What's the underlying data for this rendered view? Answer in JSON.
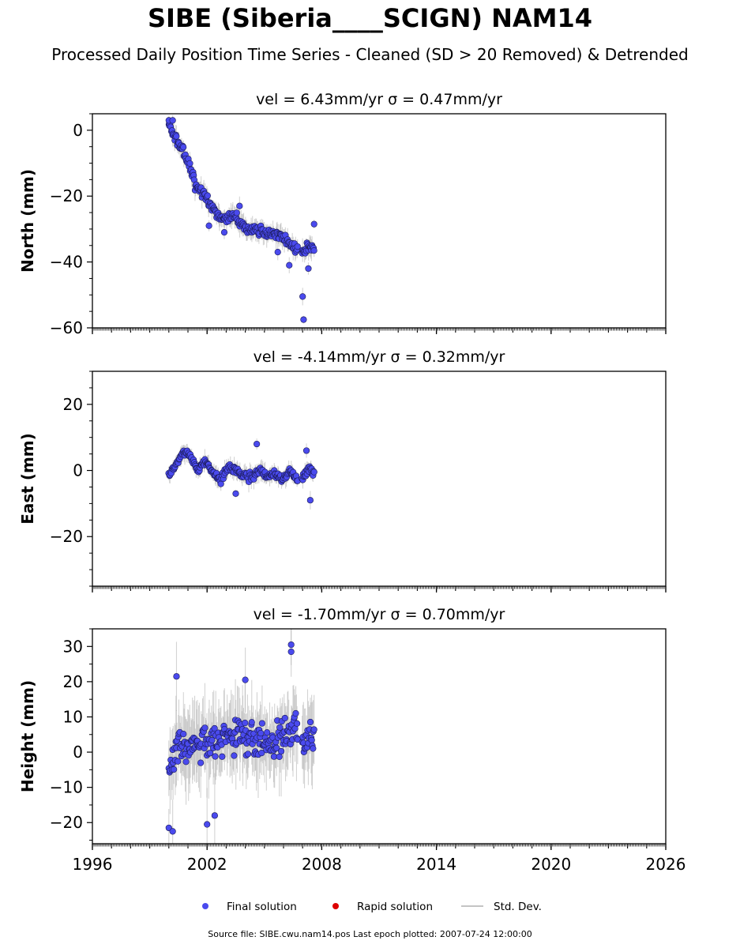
{
  "title": "SIBE (Siberia____SCIGN) NAM14",
  "subtitle": "Processed Daily Position Time Series - Cleaned (SD > 20 Removed) & Detrended",
  "footer": "Source file: SIBE.cwu.nam14.pos  Last epoch plotted: 2007-07-24 12:00:00",
  "colors": {
    "final": "#4a4aee",
    "rapid": "#dd0000",
    "stddev": "#b0b0b0"
  },
  "legend": [
    {
      "key": "final",
      "label": "Final solution"
    },
    {
      "key": "rapid",
      "label": "Rapid solution"
    },
    {
      "key": "stddev",
      "label": "Std. Dev."
    }
  ],
  "chart_data": [
    {
      "type": "scatter",
      "title": "vel = 6.43mm/yr   σ = 0.47mm/yr",
      "ylabel": "North (mm)",
      "xlim": [
        1996,
        2026
      ],
      "ylim": [
        -60,
        5
      ],
      "yticks": [
        0,
        -20,
        -40,
        -60
      ],
      "xticks": [
        1996,
        2002,
        2008,
        2014,
        2020,
        2026
      ],
      "x_tick_labels_shown": false,
      "anchors": [
        [
          2000.0,
          1
        ],
        [
          2000.4,
          -3
        ],
        [
          2000.8,
          -7
        ],
        [
          2001.1,
          -11
        ],
        [
          2001.4,
          -17
        ],
        [
          2001.8,
          -19
        ],
        [
          2002.2,
          -23
        ],
        [
          2002.6,
          -26
        ],
        [
          2003.0,
          -27
        ],
        [
          2003.5,
          -26
        ],
        [
          2004.0,
          -30
        ],
        [
          2004.5,
          -30
        ],
        [
          2005.0,
          -31
        ],
        [
          2005.5,
          -31
        ],
        [
          2006.0,
          -33
        ],
        [
          2006.5,
          -35
        ],
        [
          2007.0,
          -37
        ],
        [
          2007.6,
          -35
        ]
      ],
      "noise": 1.8,
      "outliers": [
        [
          2000.0,
          3
        ],
        [
          2000.2,
          3
        ],
        [
          2002.1,
          -29
        ],
        [
          2002.9,
          -31
        ],
        [
          2003.7,
          -23
        ],
        [
          2005.7,
          -37
        ],
        [
          2006.3,
          -41
        ],
        [
          2007.0,
          -50.5
        ],
        [
          2007.05,
          -57.5
        ],
        [
          2007.6,
          -28.5
        ],
        [
          2007.3,
          -42
        ]
      ]
    },
    {
      "type": "scatter",
      "title": "vel = -4.14mm/yr   σ = 0.32mm/yr",
      "ylabel": "East (mm)",
      "xlim": [
        1996,
        2026
      ],
      "ylim": [
        -35,
        30
      ],
      "yticks": [
        20,
        0,
        -20
      ],
      "xticks": [
        1996,
        2002,
        2008,
        2014,
        2020,
        2026
      ],
      "x_tick_labels_shown": false,
      "anchors": [
        [
          2000.0,
          -1
        ],
        [
          2000.3,
          1
        ],
        [
          2000.6,
          4
        ],
        [
          2000.9,
          6
        ],
        [
          2001.2,
          4
        ],
        [
          2001.5,
          0
        ],
        [
          2001.9,
          3
        ],
        [
          2002.3,
          0
        ],
        [
          2002.7,
          -3
        ],
        [
          2003.1,
          1
        ],
        [
          2003.5,
          0
        ],
        [
          2003.9,
          -1
        ],
        [
          2004.3,
          -2
        ],
        [
          2004.7,
          0
        ],
        [
          2005.1,
          -2
        ],
        [
          2005.5,
          -1
        ],
        [
          2005.9,
          -3
        ],
        [
          2006.3,
          0
        ],
        [
          2006.7,
          -2
        ],
        [
          2007.0,
          -3
        ],
        [
          2007.3,
          1
        ],
        [
          2007.6,
          -1
        ]
      ],
      "noise": 1.6,
      "outliers": [
        [
          2004.6,
          8
        ],
        [
          2003.5,
          -7
        ],
        [
          2007.2,
          6
        ],
        [
          2007.4,
          -9
        ]
      ]
    },
    {
      "type": "scatter",
      "title": "vel = -1.70mm/yr   σ = 0.70mm/yr",
      "ylabel": "Height (mm)",
      "xlim": [
        1996,
        2026
      ],
      "ylim": [
        -26,
        35
      ],
      "yticks": [
        30,
        20,
        10,
        0,
        -10,
        -20
      ],
      "xticks": [
        1996,
        2002,
        2008,
        2014,
        2020,
        2026
      ],
      "x_tick_labels_shown": true,
      "anchors": [
        [
          2000.0,
          -5
        ],
        [
          2000.5,
          3
        ],
        [
          2001.0,
          1
        ],
        [
          2001.5,
          3
        ],
        [
          2002.0,
          2
        ],
        [
          2002.5,
          3
        ],
        [
          2003.0,
          4
        ],
        [
          2003.5,
          4
        ],
        [
          2004.0,
          5
        ],
        [
          2004.5,
          4
        ],
        [
          2005.0,
          3
        ],
        [
          2005.5,
          4
        ],
        [
          2006.0,
          5
        ],
        [
          2006.5,
          7
        ],
        [
          2007.0,
          3
        ],
        [
          2007.6,
          6
        ]
      ],
      "noise": 6.5,
      "outliers": [
        [
          2000.4,
          21.5
        ],
        [
          2002.0,
          -20.5
        ],
        [
          2006.4,
          30.5
        ],
        [
          2006.4,
          28.5
        ],
        [
          2000.0,
          -21.5
        ],
        [
          2000.2,
          -22.5
        ],
        [
          2004.0,
          20.5
        ],
        [
          2002.4,
          -18
        ]
      ]
    }
  ]
}
